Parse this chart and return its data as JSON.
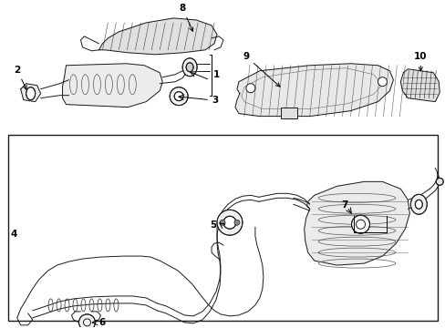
{
  "bg_color": "#ffffff",
  "line_color": "#1a1a1a",
  "figsize": [
    4.89,
    3.6
  ],
  "dpi": 100,
  "lw": 0.7
}
